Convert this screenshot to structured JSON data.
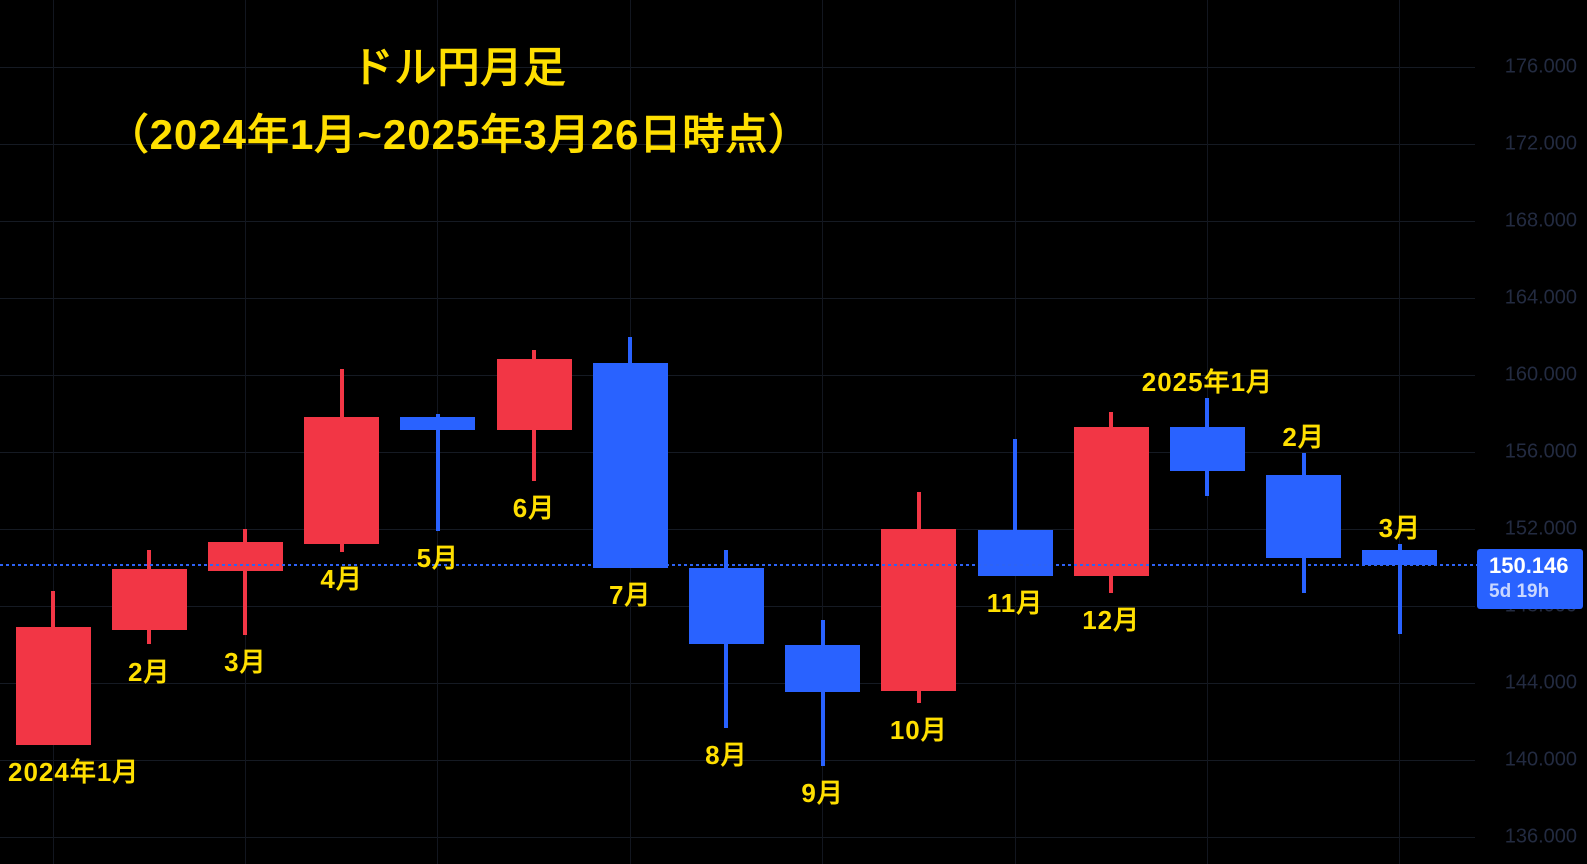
{
  "title": {
    "line1": "ドル円月足",
    "line2": "（2024年1月~2025年3月26日時点）"
  },
  "price_badge": {
    "price": "150.146",
    "countdown": "5d 19h"
  },
  "y_axis": {
    "labels": [
      "176.000",
      "172.000",
      "168.000",
      "164.000",
      "160.000",
      "156.000",
      "152.000",
      "148.000",
      "144.000",
      "140.000",
      "136.000"
    ]
  },
  "colors": {
    "background": "#000000",
    "candle_up": "#f23645",
    "candle_down": "#2962ff",
    "annotation_yellow": "#ffdf00",
    "axis_text": "#232b41",
    "grid": "#151a23",
    "price_line": "#2d63f5",
    "badge_bg": "#2962ff",
    "badge_text": "#ffffff",
    "badge_subtext": "#c9d7ff"
  },
  "chart_data": {
    "type": "candlestick",
    "symbol": "USD/JPY",
    "timeframe": "monthly",
    "title": "ドル円月足（2024年1月~2025年3月26日時点）",
    "current_price": 150.146,
    "time_remaining": "5d 19h",
    "y_ticks": [
      176,
      172,
      168,
      164,
      160,
      156,
      152,
      148,
      144,
      140,
      136
    ],
    "ylim": [
      134,
      179.5
    ],
    "grid": "on",
    "candles": [
      {
        "label": "2024年1月",
        "open": 140.8,
        "high": 148.8,
        "low": 140.8,
        "close": 146.9,
        "label_side": "below",
        "label_align": "left"
      },
      {
        "label": "2月",
        "open": 146.75,
        "high": 150.9,
        "low": 146.0,
        "close": 149.9,
        "label_side": "below"
      },
      {
        "label": "3月",
        "open": 149.8,
        "high": 152.0,
        "low": 146.5,
        "close": 151.3,
        "label_side": "below"
      },
      {
        "label": "4月",
        "open": 151.2,
        "high": 160.3,
        "low": 150.8,
        "close": 157.8,
        "label_side": "below"
      },
      {
        "label": "5月",
        "open": 157.8,
        "high": 158.0,
        "low": 151.9,
        "close": 157.15,
        "label_side": "below"
      },
      {
        "label": "6月",
        "open": 157.15,
        "high": 161.3,
        "low": 154.5,
        "close": 160.85,
        "label_side": "below"
      },
      {
        "label": "7月",
        "open": 160.6,
        "high": 162.0,
        "low": 149.95,
        "close": 149.95,
        "label_side": "below"
      },
      {
        "label": "8月",
        "open": 149.95,
        "high": 150.9,
        "low": 141.65,
        "close": 146.05,
        "label_side": "below"
      },
      {
        "label": "9月",
        "open": 146.0,
        "high": 147.25,
        "low": 139.7,
        "close": 143.55,
        "label_side": "below"
      },
      {
        "label": "10月",
        "open": 143.6,
        "high": 153.9,
        "low": 142.95,
        "close": 152.0,
        "label_side": "below"
      },
      {
        "label": "11月",
        "open": 151.95,
        "high": 156.7,
        "low": 149.55,
        "close": 149.55,
        "label_side": "below"
      },
      {
        "label": "12月",
        "open": 149.55,
        "high": 158.1,
        "low": 148.65,
        "close": 157.3,
        "label_side": "below"
      },
      {
        "label": "2025年1月",
        "open": 157.3,
        "high": 158.8,
        "low": 153.7,
        "close": 155.0,
        "label_side": "above"
      },
      {
        "label": "2月",
        "open": 154.8,
        "high": 155.95,
        "low": 148.7,
        "close": 150.5,
        "label_side": "above"
      },
      {
        "label": "3月",
        "open": 150.9,
        "high": 151.2,
        "low": 146.55,
        "close": 150.146,
        "label_side": "above"
      }
    ]
  }
}
